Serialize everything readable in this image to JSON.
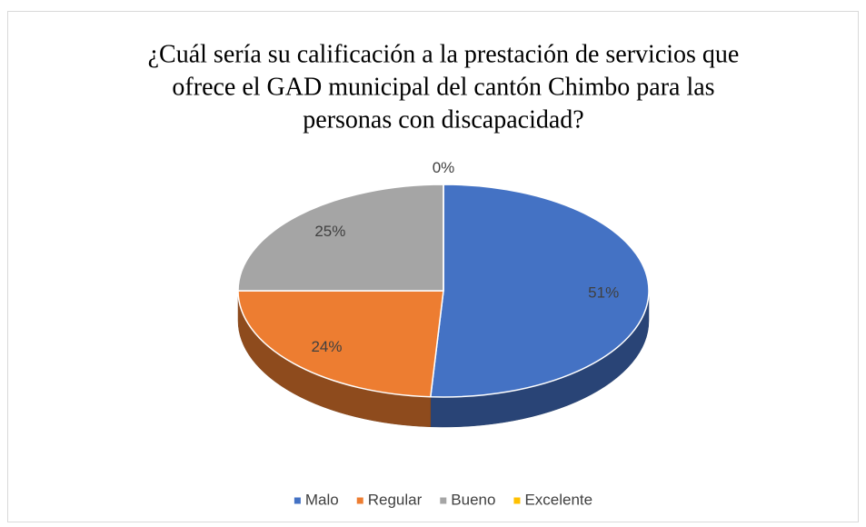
{
  "chart_data": {
    "type": "pie3d",
    "title": [
      "¿Cuál sería su calificación a la prestación de servicios que",
      "ofrece el GAD municipal del cantón Chimbo para las",
      "personas con discapacidad?"
    ],
    "categories": [
      "Malo",
      "Regular",
      "Bueno",
      "Excelente"
    ],
    "values": [
      51,
      24,
      25,
      0
    ],
    "value_labels": [
      "51%",
      "24%",
      "25%",
      "0%"
    ],
    "colors": [
      "#4472c4",
      "#ed7d31",
      "#a5a5a5",
      "#ffc000"
    ],
    "legend": "bottom"
  }
}
